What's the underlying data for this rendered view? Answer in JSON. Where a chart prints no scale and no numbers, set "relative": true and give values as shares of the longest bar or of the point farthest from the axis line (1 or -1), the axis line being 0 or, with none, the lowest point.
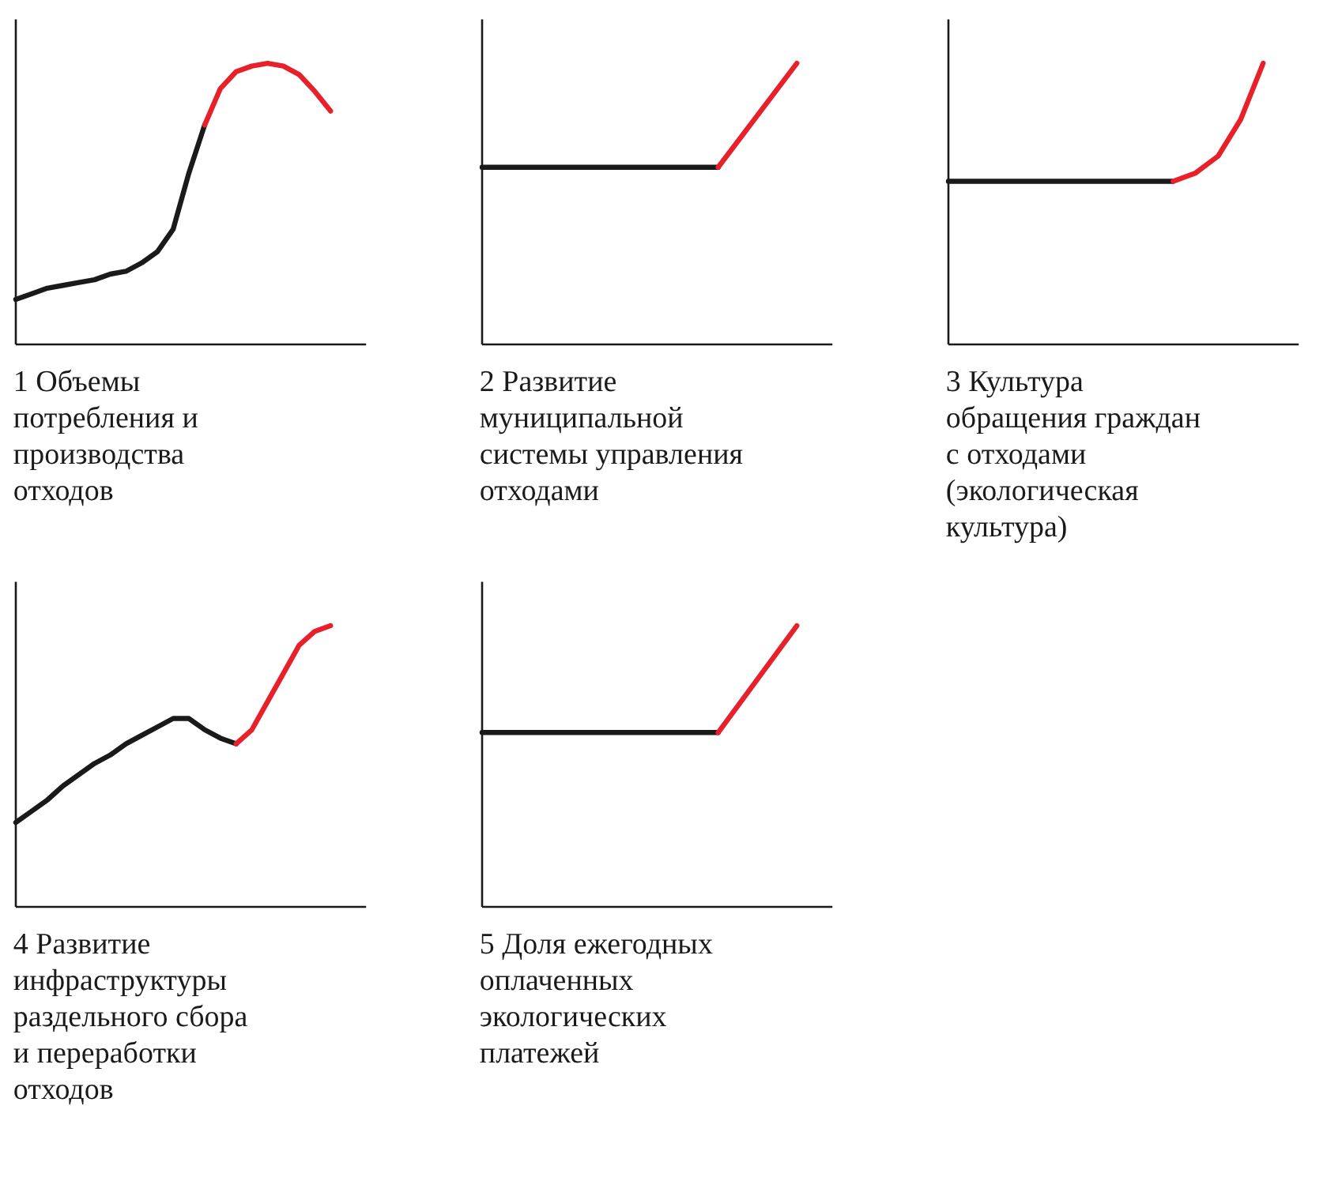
{
  "chart_data": [
    {
      "type": "line",
      "relative": true,
      "title": "1 Объемы потребления и производства отходов",
      "categories": [
        null,
        null,
        null,
        null,
        null,
        null,
        null,
        null,
        null,
        null,
        null,
        null,
        null,
        null,
        null,
        null,
        null,
        null,
        null,
        null,
        null
      ],
      "series": [
        {
          "color": "#1a1a1a",
          "values": [
            0.16,
            0.18,
            0.2,
            0.21,
            0.22,
            0.23,
            0.25,
            0.26,
            0.29,
            0.33,
            0.41,
            0.61,
            0.78,
            null,
            null,
            null,
            null,
            null,
            null,
            null,
            null
          ]
        },
        {
          "color": "#e8202a",
          "values": [
            null,
            null,
            null,
            null,
            null,
            null,
            null,
            null,
            null,
            null,
            null,
            null,
            0.78,
            0.91,
            0.97,
            0.99,
            1,
            0.99,
            0.96,
            0.9,
            0.83
          ]
        }
      ]
    },
    {
      "type": "line",
      "relative": true,
      "title": "2 Развитие муниципальной системы управления отходами",
      "categories": [
        null,
        null,
        null,
        null,
        null
      ],
      "series": [
        {
          "color": "#1a1a1a",
          "values": [
            0.63,
            0.63,
            0.63,
            0.63,
            null
          ]
        },
        {
          "color": "#e8202a",
          "values": [
            null,
            null,
            null,
            0.63,
            1
          ]
        }
      ]
    },
    {
      "type": "line",
      "relative": true,
      "title": "3 Культура обращения граждан с отходами (экологическая культура)",
      "categories": [
        null,
        null,
        null,
        null,
        null,
        null,
        null,
        null,
        null,
        null,
        null,
        null,
        null,
        null,
        null
      ],
      "series": [
        {
          "color": "#1a1a1a",
          "values": [
            0.58,
            0.58,
            0.58,
            0.58,
            0.58,
            0.58,
            0.58,
            0.58,
            0.58,
            0.58,
            0.58,
            null,
            null,
            null,
            null
          ]
        },
        {
          "color": "#e8202a",
          "values": [
            null,
            null,
            null,
            null,
            null,
            null,
            null,
            null,
            null,
            null,
            0.58,
            0.61,
            0.67,
            0.8,
            1
          ]
        }
      ]
    },
    {
      "type": "line",
      "relative": true,
      "title": "4 Развитие инфраструктуры раздельного сбора и переработки отходов",
      "categories": [
        null,
        null,
        null,
        null,
        null,
        null,
        null,
        null,
        null,
        null,
        null,
        null,
        null,
        null,
        null,
        null,
        null,
        null,
        null,
        null,
        null
      ],
      "series": [
        {
          "color": "#1a1a1a",
          "values": [
            0.3,
            0.34,
            0.38,
            0.43,
            0.47,
            0.51,
            0.54,
            0.58,
            0.61,
            0.64,
            0.67,
            0.67,
            0.63,
            0.6,
            0.58,
            null,
            null,
            null,
            null,
            null,
            null
          ]
        },
        {
          "color": "#e8202a",
          "values": [
            null,
            null,
            null,
            null,
            null,
            null,
            null,
            null,
            null,
            null,
            null,
            null,
            null,
            null,
            0.58,
            0.63,
            0.73,
            0.83,
            0.93,
            0.98,
            1
          ]
        }
      ]
    },
    {
      "type": "line",
      "relative": true,
      "title": "5 Доля ежегодных оплаченных экологических платежей",
      "categories": [
        null,
        null,
        null,
        null,
        null
      ],
      "series": [
        {
          "color": "#1a1a1a",
          "values": [
            0.62,
            0.62,
            0.62,
            0.62,
            null
          ]
        },
        {
          "color": "#e8202a",
          "values": [
            null,
            null,
            null,
            0.62,
            1
          ]
        }
      ]
    }
  ]
}
